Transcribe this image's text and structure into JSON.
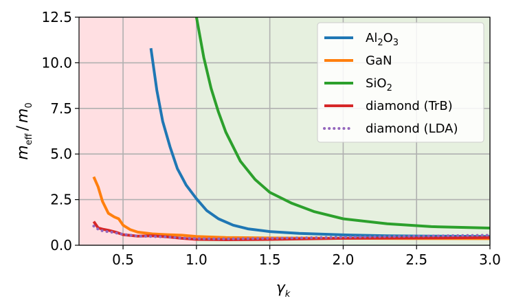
{
  "chart_data": {
    "type": "line",
    "xlabel_main": "γ",
    "xlabel_sub": "k",
    "ylabel_main": "m",
    "ylabel_sub": "eff",
    "ylabel_sep": "/",
    "ylabel_den": "m",
    "ylabel_den_sub": "0",
    "xlim": [
      0.2,
      3.0
    ],
    "ylim": [
      0.0,
      12.5
    ],
    "xticks": [
      0.5,
      1.0,
      1.5,
      2.0,
      2.5,
      3.0
    ],
    "xtick_labels": [
      "0.5",
      "1.0",
      "1.5",
      "2.0",
      "2.5",
      "3.0"
    ],
    "yticks": [
      0.0,
      2.5,
      5.0,
      7.5,
      10.0,
      12.5
    ],
    "ytick_labels": [
      "0.0",
      "2.5",
      "5.0",
      "7.5",
      "10.0",
      "12.5"
    ],
    "grid": true,
    "legend_position": "top-right",
    "shaded_regions": [
      {
        "x_from": 0.2,
        "x_to": 1.0,
        "color": "#ffdfe2"
      },
      {
        "x_from": 1.0,
        "x_to": 3.0,
        "color": "#e6f0df"
      }
    ],
    "series": [
      {
        "name": "Al2O3",
        "legend_parts": [
          [
            "Al",
            ""
          ],
          [
            "2",
            "sub"
          ],
          [
            "O",
            ""
          ],
          [
            "3",
            "sub"
          ]
        ],
        "color": "#1f77b4",
        "style": "solid",
        "x": [
          0.69,
          0.73,
          0.77,
          0.82,
          0.87,
          0.93,
          1.0,
          1.07,
          1.15,
          1.25,
          1.35,
          1.5,
          1.7,
          2.0,
          2.3,
          2.6,
          3.0
        ],
        "y": [
          10.8,
          8.5,
          6.8,
          5.4,
          4.2,
          3.3,
          2.55,
          1.9,
          1.45,
          1.1,
          0.9,
          0.75,
          0.65,
          0.57,
          0.52,
          0.5,
          0.48
        ]
      },
      {
        "name": "GaN",
        "legend_parts": [
          [
            "GaN",
            ""
          ]
        ],
        "color": "#ff7f0e",
        "style": "solid",
        "x": [
          0.3,
          0.33,
          0.36,
          0.4,
          0.44,
          0.47,
          0.5,
          0.55,
          0.6,
          0.7,
          0.8,
          0.9,
          1.0,
          1.2,
          1.5,
          2.0,
          2.5,
          3.0
        ],
        "y": [
          3.75,
          3.2,
          2.4,
          1.75,
          1.55,
          1.45,
          1.1,
          0.85,
          0.72,
          0.62,
          0.58,
          0.55,
          0.48,
          0.42,
          0.4,
          0.38,
          0.37,
          0.36
        ]
      },
      {
        "name": "SiO2",
        "legend_parts": [
          [
            "SiO",
            ""
          ],
          [
            "2",
            "sub"
          ]
        ],
        "color": "#2ca02c",
        "style": "solid",
        "x": [
          1.0,
          1.05,
          1.1,
          1.15,
          1.2,
          1.3,
          1.4,
          1.5,
          1.65,
          1.8,
          2.0,
          2.3,
          2.6,
          3.0
        ],
        "y": [
          12.5,
          10.3,
          8.6,
          7.3,
          6.2,
          4.6,
          3.6,
          2.9,
          2.3,
          1.85,
          1.45,
          1.18,
          1.02,
          0.94
        ]
      },
      {
        "name": "diamond (TrB)",
        "legend_parts": [
          [
            "diamond (TrB)",
            ""
          ]
        ],
        "color": "#d62728",
        "style": "solid",
        "x": [
          0.3,
          0.33,
          0.36,
          0.4,
          0.45,
          0.5,
          0.6,
          0.7,
          0.8,
          0.9,
          1.0,
          1.2,
          1.5,
          2.0,
          2.5,
          3.0
        ],
        "y": [
          1.3,
          0.95,
          0.88,
          0.82,
          0.72,
          0.58,
          0.5,
          0.52,
          0.46,
          0.38,
          0.32,
          0.3,
          0.32,
          0.38,
          0.4,
          0.42
        ]
      },
      {
        "name": "diamond (LDA)",
        "legend_parts": [
          [
            "diamond (LDA)",
            ""
          ]
        ],
        "color": "#9467bd",
        "style": "dotted",
        "x": [
          0.3,
          0.34,
          0.38,
          0.42,
          0.5,
          0.6,
          0.7,
          0.8,
          0.9,
          1.0,
          1.2,
          1.5,
          2.0,
          2.5,
          3.0
        ],
        "y": [
          1.05,
          0.82,
          0.76,
          0.72,
          0.6,
          0.5,
          0.48,
          0.45,
          0.4,
          0.36,
          0.35,
          0.38,
          0.44,
          0.5,
          0.55
        ]
      }
    ]
  }
}
